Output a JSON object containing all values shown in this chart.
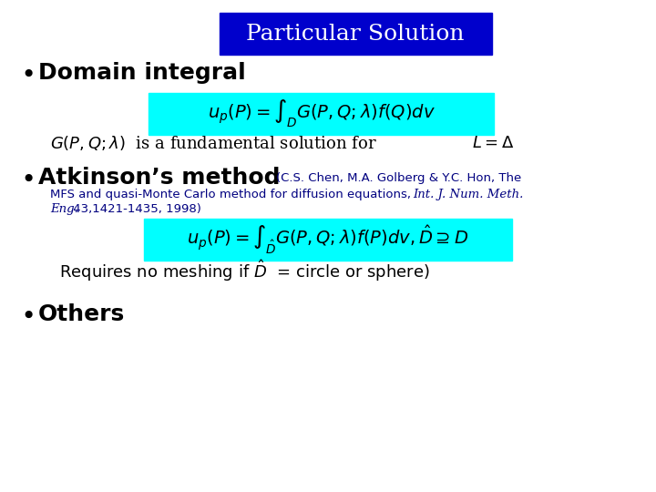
{
  "title": "Particular Solution",
  "title_bg": "#0000CC",
  "title_color": "#FFFFFF",
  "cyan_bg": "#00FFFF",
  "text_color": "#000080",
  "black": "#000000",
  "bg_color": "#FFFFFF",
  "bullet1": "Domain integral",
  "bullet2": "Atkinson’s method",
  "citation_line1": "(C.S. Chen, M.A. Golberg & Y.C. Hon, The",
  "citation_line2a": "MFS and quasi-Monte Carlo method for diffusion equations,",
  "citation_line2b": "Int. J. Num. Meth.",
  "citation_line3a": "Eng.",
  "citation_line3b": " 43,1421-1435, 1998)",
  "bullet3": "Others"
}
